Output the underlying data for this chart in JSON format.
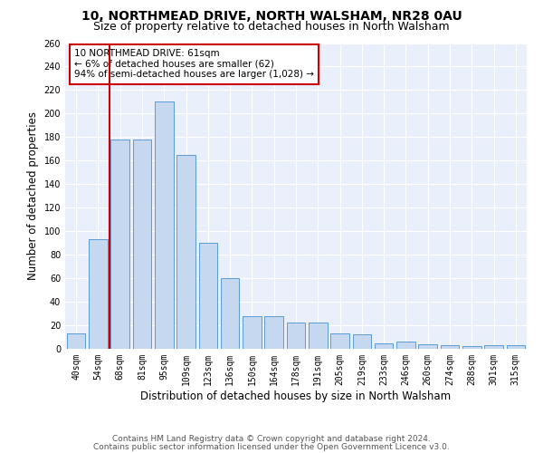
{
  "title": "10, NORTHMEAD DRIVE, NORTH WALSHAM, NR28 0AU",
  "subtitle": "Size of property relative to detached houses in North Walsham",
  "xlabel": "Distribution of detached houses by size in North Walsham",
  "ylabel": "Number of detached properties",
  "bar_labels": [
    "40sqm",
    "54sqm",
    "68sqm",
    "81sqm",
    "95sqm",
    "109sqm",
    "123sqm",
    "136sqm",
    "150sqm",
    "164sqm",
    "178sqm",
    "191sqm",
    "205sqm",
    "219sqm",
    "233sqm",
    "246sqm",
    "260sqm",
    "274sqm",
    "288sqm",
    "301sqm",
    "315sqm"
  ],
  "bar_values": [
    13,
    93,
    178,
    178,
    210,
    165,
    90,
    60,
    28,
    28,
    22,
    22,
    13,
    12,
    5,
    6,
    4,
    3,
    2,
    3,
    3
  ],
  "bar_color": "#c5d8f0",
  "bar_edge_color": "#5b9bd5",
  "property_line_color": "#cc0000",
  "annotation_text": "10 NORTHMEAD DRIVE: 61sqm\n← 6% of detached houses are smaller (62)\n94% of semi-detached houses are larger (1,028) →",
  "annotation_box_color": "#ffffff",
  "annotation_box_edge_color": "#cc0000",
  "ylim": [
    0,
    260
  ],
  "yticks": [
    0,
    20,
    40,
    60,
    80,
    100,
    120,
    140,
    160,
    180,
    200,
    220,
    240,
    260
  ],
  "background_color": "#eaf0fb",
  "footer_line1": "Contains HM Land Registry data © Crown copyright and database right 2024.",
  "footer_line2": "Contains public sector information licensed under the Open Government Licence v3.0.",
  "title_fontsize": 10,
  "subtitle_fontsize": 9,
  "axis_label_fontsize": 8.5,
  "tick_fontsize": 7,
  "annotation_fontsize": 7.5,
  "footer_fontsize": 6.5
}
